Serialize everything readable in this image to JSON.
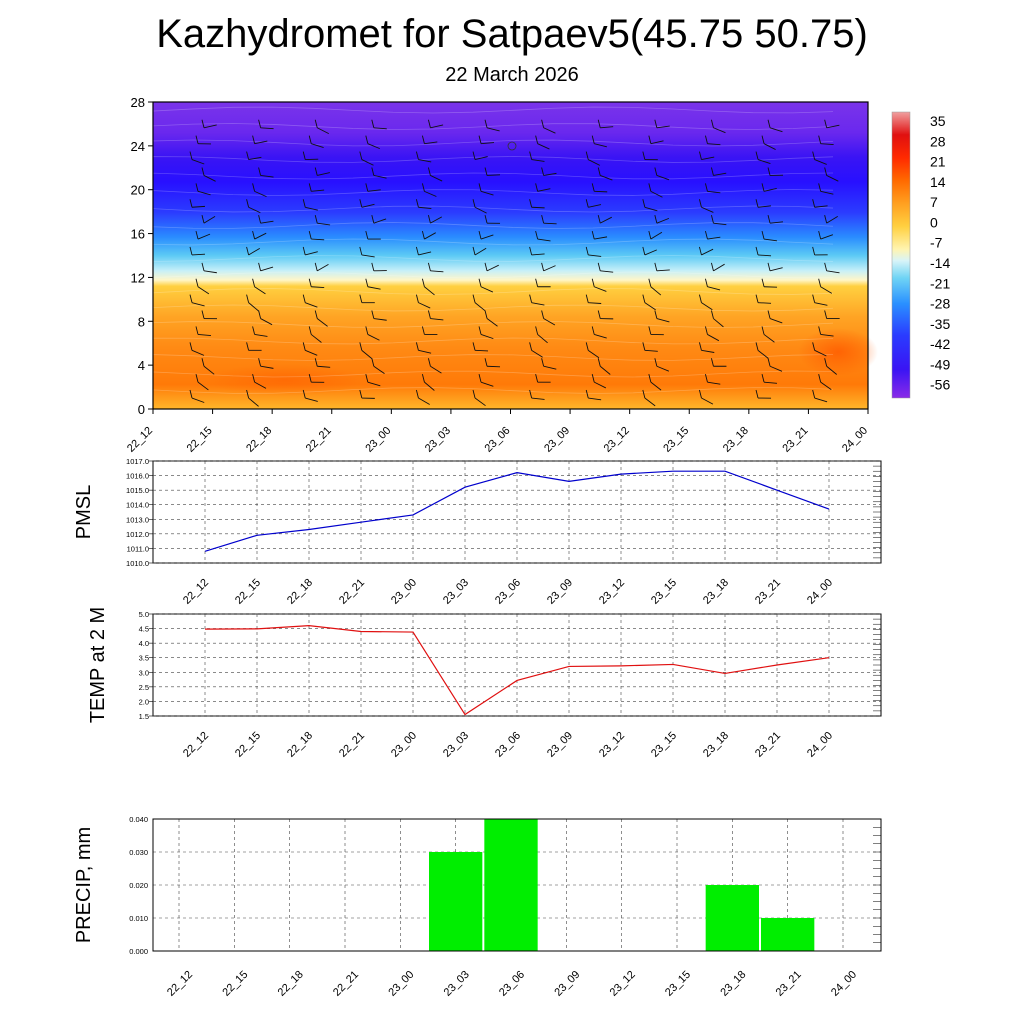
{
  "title": "Kazhydromet for Satpaev5(45.75 50.75)",
  "date": "22 March 2026",
  "time_labels": [
    "22_12",
    "22_15",
    "22_18",
    "22_21",
    "23_00",
    "23_03",
    "23_06",
    "23_09",
    "23_12",
    "23_15",
    "23_18",
    "23_21",
    "24_00"
  ],
  "chart_data": [
    {
      "type": "heatmap",
      "name": "temperature-cross-section",
      "title": "",
      "xlabel": "",
      "ylabel": "",
      "x": [
        "22_12",
        "22_15",
        "22_18",
        "22_21",
        "23_00",
        "23_03",
        "23_06",
        "23_09",
        "23_12",
        "23_15",
        "23_18",
        "23_21",
        "24_00"
      ],
      "ylim": [
        0,
        28
      ],
      "y_ticks": [
        "0",
        "4",
        "8",
        "12",
        "16",
        "20",
        "24",
        "28"
      ],
      "colorbar_labels": [
        "35",
        "28",
        "21",
        "14",
        "7",
        "0",
        "-7",
        "-14",
        "-21",
        "-28",
        "-35",
        "-42",
        "-49",
        "-56"
      ],
      "colors": {
        "warm_low": "#ff6a00",
        "warm_mid": "#ff9a1e",
        "warm_top": "#ffc830",
        "transition": "#fff2b0",
        "cold_light": "#8fe0f5",
        "cold_mid": "#1f8cff",
        "cold_deep": "#2a14ff",
        "cold_top": "#7a2af0"
      },
      "wind_barbs": true
    },
    {
      "type": "line",
      "name": "pmsl",
      "ylabel": "PMSL",
      "x": [
        "22_12",
        "22_15",
        "22_18",
        "22_21",
        "23_00",
        "23_03",
        "23_06",
        "23_09",
        "23_12",
        "23_15",
        "23_18",
        "23_21",
        "24_00"
      ],
      "values": [
        1010.8,
        1011.9,
        1012.3,
        1012.8,
        1013.3,
        1015.2,
        1016.2,
        1015.6,
        1016.1,
        1016.3,
        1016.3,
        1015.0,
        1013.7
      ],
      "ylim": [
        1010.0,
        1017.0
      ],
      "y_ticks": [
        "1010.0",
        "1011.0",
        "1012.0",
        "1013.0",
        "1014.0",
        "1015.0",
        "1016.0",
        "1017.0"
      ],
      "color": "#0000cc",
      "grid": true
    },
    {
      "type": "line",
      "name": "temp-2m",
      "ylabel": "TEMP at 2 M",
      "x": [
        "22_12",
        "22_15",
        "22_18",
        "22_21",
        "23_00",
        "23_03",
        "23_06",
        "23_09",
        "23_12",
        "23_15",
        "23_18",
        "23_21",
        "24_00"
      ],
      "values": [
        4.48,
        4.49,
        4.6,
        4.4,
        4.38,
        1.55,
        2.72,
        3.2,
        3.22,
        3.27,
        2.96,
        3.25,
        3.5
      ],
      "ylim": [
        1.5,
        5.0
      ],
      "y_ticks": [
        "1.5",
        "2.0",
        "2.5",
        "3.0",
        "3.5",
        "4.0",
        "4.5",
        "5.0"
      ],
      "color": "#e01010",
      "grid": true
    },
    {
      "type": "bar",
      "name": "precip",
      "ylabel": "PRECIP, mm",
      "categories": [
        "22_12",
        "22_15",
        "22_18",
        "22_21",
        "23_00",
        "23_03",
        "23_06",
        "23_09",
        "23_12",
        "23_15",
        "23_18",
        "23_21",
        "24_00"
      ],
      "values": [
        0,
        0,
        0,
        0,
        0,
        0.03,
        0.04,
        0,
        0,
        0,
        0.02,
        0.01,
        0
      ],
      "ylim": [
        0,
        0.04
      ],
      "y_ticks": [
        "0.000",
        "0.010",
        "0.020",
        "0.030",
        "0.040"
      ],
      "color": "#00ee00",
      "grid": true
    }
  ]
}
